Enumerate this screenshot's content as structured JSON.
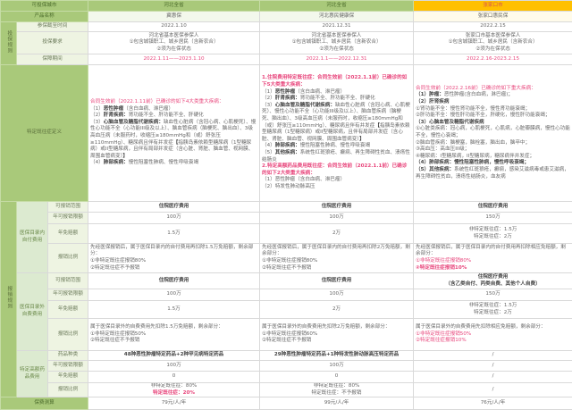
{
  "header": {
    "city_label": "可投保城市",
    "cities": [
      "河北全省",
      "河北全省",
      "张家口市"
    ],
    "product_label": "产品名称",
    "products": [
      "冀惠保",
      "河北惠民健康保",
      "张家口惠民保"
    ]
  },
  "rules": {
    "group_label": "投保规则",
    "deadline_label": "参保截至时间",
    "deadlines": [
      "2022.1.10",
      "2021.12.31",
      "2022.2.15"
    ],
    "requirement_label": "投保要求",
    "requirements": [
      [
        "河北省基本医保参保人",
        "①包含城镇职工、城乡居民（含新农合）",
        "②须为在保状态"
      ],
      [
        "河北省基本医保参保人",
        "①包含城镇职工、城乡居民（含新农合）",
        "②须为在保状态"
      ],
      [
        "张家口市基本医保参保人",
        "①包含城镇职工、城乡居民（含新农合）",
        "②须为在保状态"
      ]
    ],
    "period_label": "保障期间",
    "periods": [
      "2022.1.11——2023.1.10",
      "2022.1.1——2022.12.31",
      "2022.2.16-2023.2.15"
    ]
  },
  "preexisting": {
    "label": "特定既往症定义",
    "columns": [
      [
        [
          [
            "p",
            "合同生效前（2022.1.11前）已确诊的如下4大类重大疾病："
          ]
        ],
        [
          [
            "",
            "（1）"
          ],
          [
            "b",
            "恶性肿瘤"
          ],
          [
            "",
            "（含白血病、淋巴瘤）"
          ]
        ],
        [
          [
            "",
            "（2）"
          ],
          [
            "b",
            "肝肾疾病："
          ],
          [
            "",
            "肾功能不全、肝功能不全、肝硬化"
          ]
        ],
        [
          [
            "",
            "（3）"
          ],
          [
            "b",
            "心脑血管及糖脂代谢疾病："
          ],
          [
            "",
            "缺血性心脏病（含冠心病、心肌梗死）、慢性心功能不全（心功能III级及以上）、脑血管疾病（脑梗死、脑出血）、3级高血压病（未服药时，收缩压≥180mmHg和（或）舒张压≥110mmHg）、糖尿病且伴有并发症"
          ],
          [
            "b",
            "【"
          ],
          [
            "",
            "指胰岛素依赖型糖尿病（1型糖尿病）或II型糖尿病，且伴有局部并发症（含心脏、肾脏、脑血管、视网膜、周围血管病变）"
          ],
          [
            "b",
            "】"
          ]
        ],
        [
          [
            "",
            "（4）"
          ],
          [
            "b",
            "肺部疾病："
          ],
          [
            "",
            "慢性阻塞性肺病、慢性呼吸衰竭"
          ]
        ]
      ],
      [
        [
          [
            "bp",
            "1.住院费用特定既往症：合同生效前（2022.1.1前）已确诊的如下5大类重大疾病："
          ]
        ],
        [
          [
            "",
            "（1）"
          ],
          [
            "b",
            "恶性肿瘤"
          ],
          [
            "",
            "（含白血病、淋巴瘤）"
          ]
        ],
        [
          [
            "",
            "（2）"
          ],
          [
            "b",
            "肝肾疾病："
          ],
          [
            "",
            "肾功能不全、肝功能不全、肝硬化"
          ]
        ],
        [
          [
            "",
            "（3）"
          ],
          [
            "b",
            "心脑血管及糖脂代谢疾病："
          ],
          [
            "",
            "缺血性心脏病（含冠心病、心肌梗死）、慢性心功能不全（心功能III级及以上）、脑血管疾病（脑梗死、脑出血）、3级高血压病（未服药时，收缩压≥180mmHg和（或）舒张压≥110mmHg）、糖尿病且伴有并发症"
          ],
          [
            "b",
            "【"
          ],
          [
            "",
            "指胰岛素依赖型糖尿病（1型糖尿病）或II型糖尿病，且伴有局部并发症（含心脏、肾脏、脑血管、视网膜、周围血管病变）"
          ],
          [
            "b",
            "】"
          ]
        ],
        [
          [
            "",
            "（4）"
          ],
          [
            "b",
            "肺部疾病："
          ],
          [
            "",
            "慢性阻塞性肺病、慢性呼吸衰竭"
          ]
        ],
        [
          [
            "",
            "（5）"
          ],
          [
            "b",
            "其他疾病："
          ],
          [
            "",
            "系统性红斑狼疮、癫痫、再生障碍性贫血、溃疡性结肠炎"
          ]
        ],
        [
          [
            "bp",
            "2.特定高额药品费用既往症：合同生效前（2022.1.1前）已确诊的如下2大类重大疾病："
          ]
        ],
        [
          [
            "",
            "（1）恶性肿瘤（含白血病、淋巴瘤）"
          ]
        ],
        [
          [
            "",
            "（2）特发性肺动脉高压"
          ]
        ]
      ],
      [
        [
          [
            "p",
            "合同生效前（2022.2.16前）已确诊的如下重大疾病："
          ]
        ],
        [
          [
            "b",
            "（1）肿瘤："
          ],
          [
            "",
            "恶性肿瘤(含白血病，淋巴瘤)；"
          ]
        ],
        [
          [
            "b",
            "（2）肝肾疾病"
          ]
        ],
        [
          [
            "",
            "①肾功能不全：慢性肾功能不全，慢性肾功能衰竭；"
          ]
        ],
        [
          [
            "",
            "②肝功能不全：慢性肝功能不全，肝硬化，慢性肝功能衰竭；"
          ]
        ],
        [
          [
            "b",
            "（3）心脑血管及糖脂代谢疾病"
          ]
        ],
        [
          [
            "",
            "①心脏类疾病：冠心病，心肌梗死，心肌病，心脏瓣膜病，慢性心功能不全，慢性心衰竭；"
          ]
        ],
        [
          [
            "",
            "②脑血管疾病：脑梗塞，脑栓塞，脑出血，脑卒中；"
          ]
        ],
        [
          [
            "",
            "③高血压：高血压III级；"
          ]
        ],
        [
          [
            "",
            "④糖尿病：I型糖尿病，II型糖尿病，糖尿病伴并发症；"
          ]
        ],
        [
          [
            "b",
            "（4）肺部疾病：慢性阻塞性肺病，慢性呼吸衰竭；"
          ]
        ],
        [
          [
            "b",
            "（5）其他疾病："
          ],
          [
            "",
            "系统性红斑狼疮，癫痫，感染艾滋病毒或患艾滋病，再生障碍性贫血，溃疡性结肠炎，血友病"
          ]
        ]
      ]
    ]
  },
  "reimburse": {
    "group_label": "报销规则",
    "in_list": {
      "label": "医保目录内自付费用",
      "scope_label": "可报销范围",
      "limit_label": "年可报销限额",
      "deductible_label": "年免赔额",
      "ratio_label": "报销比例",
      "scope": [
        "住院医疗费用",
        "住院医疗费用",
        "住院医疗费用"
      ],
      "limit": [
        "100万",
        "100万",
        "150万"
      ],
      "deductible": [
        [
          "1.5万"
        ],
        [
          "2万"
        ],
        [
          "非特定既往症：1.5万",
          "特定既往症：2万"
        ]
      ],
      "ratio": [
        [
          [
            [
              "",
              "先经医保报销后，属于医保目录内的自付费用再扣除1.5万免赔额，剩余部分："
            ]
          ],
          [
            [
              "",
              "①非特定既往症报销80%"
            ]
          ],
          [
            [
              "",
              "②特定既往症不予报销"
            ]
          ]
        ],
        [
          [
            [
              "",
              "先经医保报销后，属于医保目录内的自付费用再扣除2万免赔额，剩余部分："
            ]
          ],
          [
            [
              "",
              "①非特定既往症报销80%"
            ]
          ],
          [
            [
              "",
              "②特定既往症不予报销"
            ]
          ]
        ],
        [
          [
            [
              "",
              "先经医保报销后，属于医保目录内的自付费用再扣除相应免赔额，剩余部分："
            ]
          ],
          [
            [
              "p",
              "①非特定既往症报销80%"
            ]
          ],
          [
            [
              "bp",
              "②特定既往症报销10%"
            ]
          ]
        ]
      ]
    },
    "out_list": {
      "label": "医保目录外自费费用",
      "scope_label": "可报销范围",
      "limit_label": "年可报销限额",
      "deductible_label": "年免赔额",
      "ratio_label": "报销比例",
      "scope": [
        [
          "住院医疗费用"
        ],
        [
          "住院医疗费用"
        ],
        [
          "住院医疗费用",
          "（含乙类自付、丙类自费、其他个人自费）"
        ]
      ],
      "limit": [
        "100万",
        "100万",
        "150万"
      ],
      "deductible": [
        [
          "1.5万"
        ],
        [
          "2万"
        ],
        [
          "非特定既往症：1.5万",
          "特定既往症：2万"
        ]
      ],
      "ratio": [
        [
          [
            [
              "",
              "属于医保目录外的自费费用先扣除1.5万免赔额，剩余部分："
            ]
          ],
          [
            [
              "",
              "①非特定既往症报销50%"
            ]
          ],
          [
            [
              "",
              "②特定既往症不予报销"
            ]
          ]
        ],
        [
          [
            [
              "",
              "属于医保目录外的自费费用先扣除2万免赔额，剩余部分："
            ]
          ],
          [
            [
              "",
              "①非特定既往症报销60%"
            ]
          ],
          [
            [
              "",
              "②特定既往症不予报销"
            ]
          ]
        ],
        [
          [
            [
              "",
              "属于医保目录外的自费费用先扣除相应免赔额，剩余部分："
            ]
          ],
          [
            [
              "p",
              "①非特定既往症报销50%"
            ]
          ],
          [
            [
              "p",
              "②特定既往症报销10%"
            ]
          ]
        ]
      ]
    },
    "drugs": {
      "label": "特定高额药品费用",
      "kind_label": "药品种类",
      "limit_label": "年可报销限额",
      "deductible_label": "年免赔额",
      "ratio_label": "报销比例",
      "kind": [
        "48种恶性肿瘤特定药品+2种罕见病特定药品",
        "29种恶性肿瘤特定药品+1种特发性肺动脉高压特定药品",
        "/"
      ],
      "limit": [
        "100万",
        "100万",
        "/"
      ],
      "deductible": [
        "0",
        "0",
        "/"
      ],
      "ratio": [
        [
          [
            "",
            "非特定既往症：80%"
          ],
          [
            "bp",
            "特定既往症：20%"
          ]
        ],
        [
          [
            "",
            "非特定既往症：80%"
          ],
          [
            "",
            "特定既往症：不予报销"
          ]
        ],
        [
          [
            "",
            "/"
          ]
        ]
      ]
    }
  },
  "premium": {
    "label": "保费测算",
    "values": [
      "79元/人/年",
      "99元/人/年",
      "76元/人/年"
    ]
  },
  "colors": {
    "header_green": "#a9c97a",
    "highlight_yellow": "#ffc000",
    "emphasis_pink": "#e8467c"
  }
}
